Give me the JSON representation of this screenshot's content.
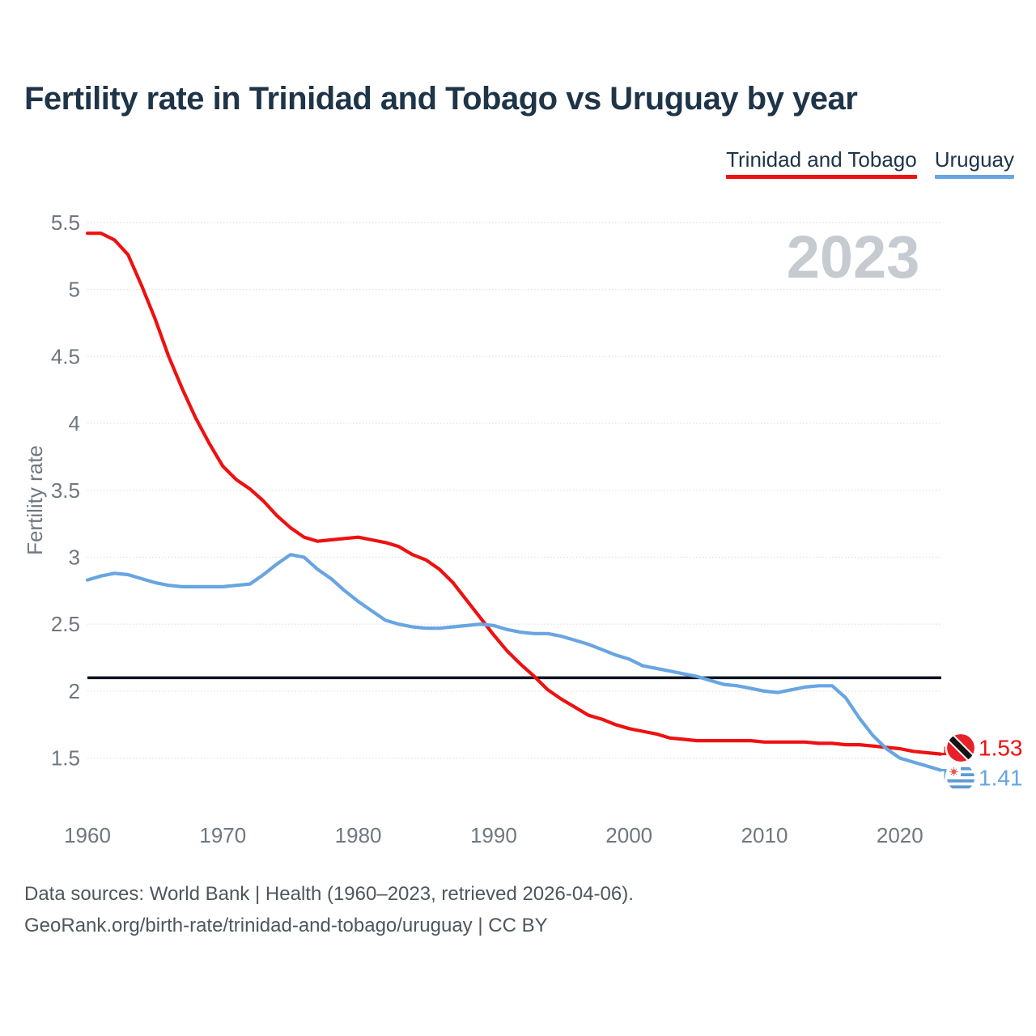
{
  "title": "Fertility rate in Trinidad and Tobago vs Uruguay by year",
  "watermark_year": "2023",
  "legend": {
    "items": [
      {
        "label": "Trinidad and Tobago",
        "color": "#ee1111"
      },
      {
        "label": "Uruguay",
        "color": "#68a5e1"
      }
    ]
  },
  "footer": {
    "line1": "Data sources: World Bank | Health (1960–2023, retrieved 2026-04-06).",
    "line2": "GeoRank.org/birth-rate/trinidad-and-tobago/uruguay | CC BY"
  },
  "chart_data": {
    "type": "line",
    "title": "Fertility rate in Trinidad and Tobago vs Uruguay by year",
    "xlabel": "",
    "ylabel": "Fertility rate",
    "grid": "horizontal-dotted",
    "legend_position": "top-right",
    "watermark": "2023",
    "xlim": [
      1960,
      2023
    ],
    "ylim": [
      1.5,
      5.5
    ],
    "xticks": [
      1960,
      1970,
      1980,
      1990,
      2000,
      2010,
      2020
    ],
    "yticks": [
      1.5,
      2,
      2.5,
      3,
      3.5,
      4,
      4.5,
      5,
      5.5
    ],
    "reference_line": {
      "value": 2.1,
      "color": "#0c1220"
    },
    "x": [
      1960,
      1961,
      1962,
      1963,
      1964,
      1965,
      1966,
      1967,
      1968,
      1969,
      1970,
      1971,
      1972,
      1973,
      1974,
      1975,
      1976,
      1977,
      1978,
      1979,
      1980,
      1981,
      1982,
      1983,
      1984,
      1985,
      1986,
      1987,
      1988,
      1989,
      1990,
      1991,
      1992,
      1993,
      1994,
      1995,
      1996,
      1997,
      1998,
      1999,
      2000,
      2001,
      2002,
      2003,
      2004,
      2005,
      2006,
      2007,
      2008,
      2009,
      2010,
      2011,
      2012,
      2013,
      2014,
      2015,
      2016,
      2017,
      2018,
      2019,
      2020,
      2021,
      2022,
      2023
    ],
    "series": [
      {
        "name": "Trinidad and Tobago",
        "color": "#ee1111",
        "end_label": "1.53",
        "final_value": 1.53,
        "values": [
          5.42,
          5.42,
          5.37,
          5.26,
          5.03,
          4.78,
          4.5,
          4.26,
          4.04,
          3.85,
          3.68,
          3.58,
          3.51,
          3.42,
          3.31,
          3.22,
          3.15,
          3.12,
          3.13,
          3.14,
          3.15,
          3.13,
          3.11,
          3.08,
          3.02,
          2.98,
          2.91,
          2.81,
          2.68,
          2.55,
          2.42,
          2.3,
          2.2,
          2.11,
          2.01,
          1.94,
          1.88,
          1.82,
          1.79,
          1.75,
          1.72,
          1.7,
          1.68,
          1.65,
          1.64,
          1.63,
          1.63,
          1.63,
          1.63,
          1.63,
          1.62,
          1.62,
          1.62,
          1.62,
          1.61,
          1.61,
          1.6,
          1.6,
          1.59,
          1.58,
          1.57,
          1.55,
          1.54,
          1.53
        ]
      },
      {
        "name": "Uruguay",
        "color": "#68a5e1",
        "end_label": "1.41",
        "final_value": 1.41,
        "values": [
          2.83,
          2.86,
          2.88,
          2.87,
          2.84,
          2.81,
          2.79,
          2.78,
          2.78,
          2.78,
          2.78,
          2.79,
          2.8,
          2.87,
          2.95,
          3.02,
          3.0,
          2.91,
          2.84,
          2.75,
          2.67,
          2.6,
          2.53,
          2.5,
          2.48,
          2.47,
          2.47,
          2.48,
          2.49,
          2.5,
          2.49,
          2.46,
          2.44,
          2.43,
          2.43,
          2.41,
          2.38,
          2.35,
          2.31,
          2.27,
          2.24,
          2.19,
          2.17,
          2.15,
          2.13,
          2.11,
          2.08,
          2.05,
          2.04,
          2.02,
          2.0,
          1.99,
          2.01,
          2.03,
          2.04,
          2.04,
          1.95,
          1.8,
          1.67,
          1.57,
          1.5,
          1.47,
          1.44,
          1.41
        ]
      }
    ]
  }
}
